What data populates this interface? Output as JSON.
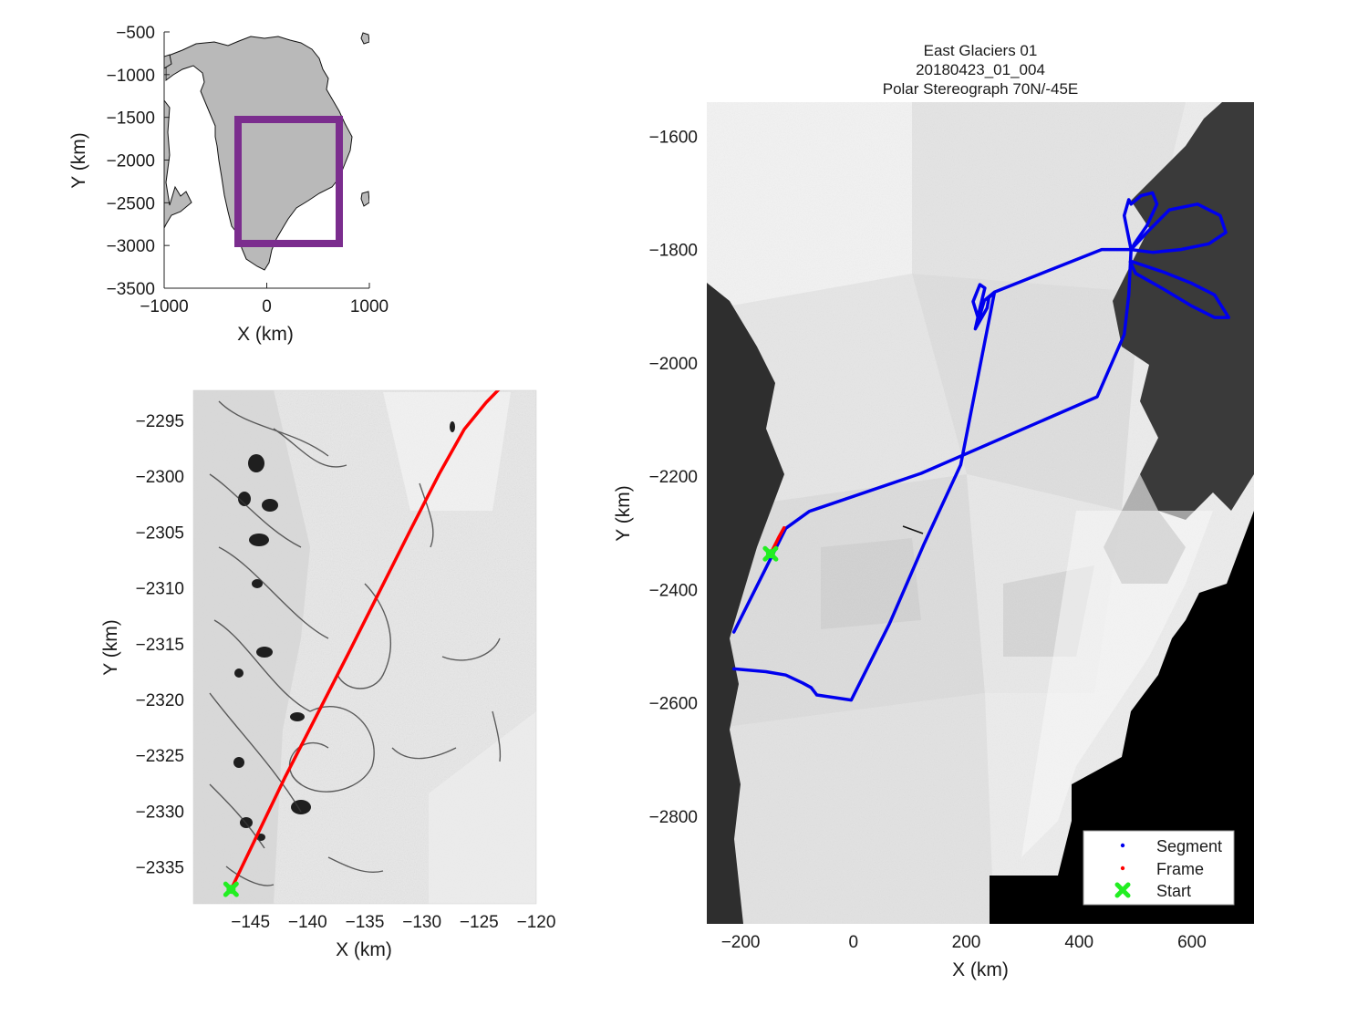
{
  "figure": {
    "title_lines": [
      "East Glaciers 01",
      "20180423_01_004",
      "Polar Stereograph 70N/-45E"
    ]
  },
  "chart_data": [
    {
      "id": "overview",
      "type": "map",
      "xlabel": "X (km)",
      "ylabel": "Y (km)",
      "xlim": [
        -1000,
        1000
      ],
      "ylim": [
        -3500,
        -500
      ],
      "xticks": [
        -1000,
        0,
        1000
      ],
      "yticks": [
        -500,
        -1000,
        -1500,
        -2000,
        -2500,
        -3000,
        -3500
      ],
      "landmass": "Greenland (gray)",
      "box": {
        "color": "#7b2d8e",
        "x": [
          -270,
          710
        ],
        "y": [
          -1560,
          -2990
        ]
      }
    },
    {
      "id": "frame",
      "type": "map",
      "xlabel": "X (km)",
      "ylabel": "Y (km)",
      "xlim": [
        -150,
        -120
      ],
      "ylim": [
        -2338.3,
        -2292.3
      ],
      "xticks": [
        -145,
        -140,
        -135,
        -130,
        -125,
        -120
      ],
      "yticks": [
        -2295,
        -2300,
        -2305,
        -2310,
        -2315,
        -2320,
        -2325,
        -2330,
        -2335
      ],
      "frame_track": {
        "color": "#ff0000",
        "x": [
          -146.7,
          -142,
          -136.5,
          -131,
          -128.5,
          -126.3,
          -124.4,
          -122.5
        ],
        "y": [
          -2337,
          -2327,
          -2316,
          -2304.8,
          -2299.8,
          -2295.8,
          -2293.4,
          -2291.4
        ]
      },
      "start": {
        "x": -146.7,
        "y": -2337,
        "color": "#22ee22"
      }
    },
    {
      "id": "segment",
      "type": "map",
      "xlabel": "X (km)",
      "ylabel": "Y (km)",
      "xlim": [
        -260,
        710
      ],
      "ylim": [
        -2990,
        -1540
      ],
      "xticks": [
        -200,
        0,
        200,
        400,
        600
      ],
      "yticks": [
        -1600,
        -1800,
        -2000,
        -2200,
        -2400,
        -2600,
        -2800
      ],
      "segment_track": {
        "color": "#0000ee",
        "x": [
          -212,
          -120,
          -78,
          120,
          432,
          480,
          488,
          492,
          440,
          250,
          240,
          237,
          216,
          225,
          233,
          224,
          212,
          222,
          232,
          250,
          190,
          125,
          64,
          -4,
          -65,
          -75,
          -90,
          -120,
          -155,
          -212
        ],
        "y": [
          -2475,
          -2292,
          -2262,
          -2195,
          -2060,
          -1950,
          -1880,
          -1800,
          -1800,
          -1875,
          -1885,
          -1903,
          -1940,
          -1900,
          -1868,
          -1862,
          -1892,
          -1924,
          -1890,
          -1875,
          -2180,
          -2320,
          -2460,
          -2595,
          -2586,
          -2573,
          -2565,
          -2551,
          -2545,
          -2540
        ]
      },
      "segment_loops": [
        {
          "x": [
            492,
            480,
            488,
            492,
            510,
            530,
            538,
            520,
            498,
            492
          ],
          "y": [
            -1800,
            -1740,
            -1712,
            -1720,
            -1705,
            -1700,
            -1720,
            -1758,
            -1790,
            -1800
          ]
        },
        {
          "x": [
            492,
            520,
            560,
            610,
            650,
            660,
            630,
            580,
            530,
            492
          ],
          "y": [
            -1800,
            -1770,
            -1730,
            -1720,
            -1740,
            -1770,
            -1790,
            -1800,
            -1805,
            -1800
          ]
        },
        {
          "x": [
            490,
            550,
            600,
            640,
            665,
            640,
            600,
            550,
            500,
            490
          ],
          "y": [
            -1820,
            -1840,
            -1860,
            -1880,
            -1920,
            -1920,
            -1900,
            -1870,
            -1842,
            -1820
          ]
        }
      ],
      "frame_track": {
        "color": "#ff0000",
        "x": [
          -147,
          -142,
          -132,
          -123
        ],
        "y": [
          -2337,
          -2327,
          -2307,
          -2291
        ]
      },
      "start": {
        "x": -147,
        "y": -2337,
        "color": "#22ee22"
      }
    }
  ],
  "legend": {
    "placement": "bottom-right",
    "items": [
      {
        "label": "Segment",
        "color": "#0000ee",
        "marker": "dot"
      },
      {
        "label": "Frame",
        "color": "#ff0000",
        "marker": "dot"
      },
      {
        "label": "Start",
        "color": "#22ee22",
        "marker": "x-cross"
      }
    ]
  }
}
